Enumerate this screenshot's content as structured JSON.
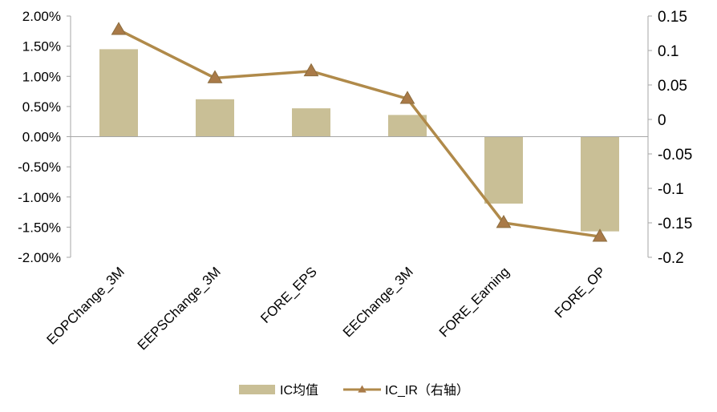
{
  "chart_data": {
    "type": "bar+line",
    "categories": [
      "EOPChange_3M",
      "EEPSChange_3M",
      "FORE_EPS",
      "EEChange_3M",
      "FORE_Earning",
      "FORE_OP"
    ],
    "series": [
      {
        "name": "IC均值",
        "type": "bar",
        "axis": "left",
        "color": "#c9bf96",
        "values": [
          0.0145,
          0.0062,
          0.0047,
          0.0036,
          -0.0111,
          -0.0157
        ]
      },
      {
        "name": "IC_IR（右轴）",
        "type": "line",
        "axis": "right",
        "color": "#b08a4a",
        "marker": "triangle",
        "marker_color": "#a97a48",
        "values": [
          0.13,
          0.06,
          0.07,
          0.03,
          -0.15,
          -0.17
        ]
      }
    ],
    "y_left": {
      "lim": [
        -0.02,
        0.02
      ],
      "ticks": [
        0.02,
        0.015,
        0.01,
        0.005,
        0,
        -0.005,
        -0.01,
        -0.015,
        -0.02
      ],
      "tick_labels": [
        "2.00%",
        "1.50%",
        "1.00%",
        "0.50%",
        "0.00%",
        "-0.50%",
        "-1.00%",
        "-1.50%",
        "-2.00%"
      ]
    },
    "y_right": {
      "lim": [
        -0.2,
        0.15
      ],
      "ticks": [
        0.15,
        0.1,
        0.05,
        0,
        -0.05,
        -0.1,
        -0.15,
        -0.2
      ],
      "tick_labels": [
        "0.15",
        "0.1",
        "0.05",
        "0",
        "-0.05",
        "-0.1",
        "-0.15",
        "-0.2"
      ]
    },
    "grid": false,
    "legend": {
      "position": "bottom",
      "entries": [
        "IC均值",
        "IC_IR（右轴）"
      ]
    }
  }
}
